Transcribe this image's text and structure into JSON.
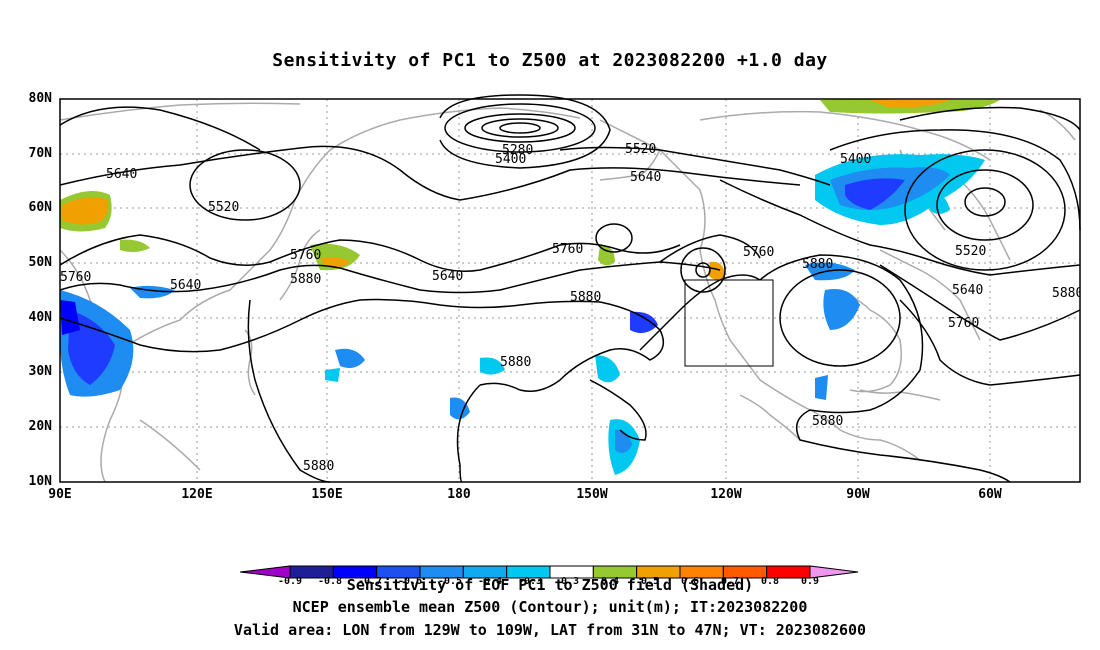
{
  "title": "Sensitivity of PC1 to Z500 at 2023082200 +1.0 day",
  "lat_labels": [
    "80N",
    "70N",
    "60N",
    "50N",
    "40N",
    "30N",
    "20N",
    "10N"
  ],
  "lon_labels": [
    "90E",
    "120E",
    "150E",
    "180",
    "150W",
    "120W",
    "90W",
    "60W"
  ],
  "contour_labels": [
    "5280",
    "5400",
    "5520",
    "5640",
    "5520",
    "5640",
    "5400",
    "5520",
    "5640",
    "5760",
    "5640",
    "5640",
    "5760",
    "5880",
    "5760",
    "5880",
    "5760",
    "5880",
    "5880",
    "5880",
    "5880",
    "5640",
    "5760",
    "5880",
    "5880"
  ],
  "colorbar": {
    "values": [
      "-0.9",
      "-0.8",
      "-0.7",
      "-0.6",
      "-0.5",
      "-0.4",
      "-0.3",
      "0.3",
      "0.4",
      "0.5",
      "0.6",
      "0.7",
      "0.8",
      "0.9"
    ],
    "colors": [
      "#a000c8",
      "#1e1e96",
      "#0000ff",
      "#1e50f0",
      "#1e8cf0",
      "#0faaf0",
      "#00c8f0",
      "#ffffff",
      "#96c832",
      "#f0a000",
      "#ff8200",
      "#ff5a00",
      "#ff0000",
      "#f096f0"
    ]
  },
  "shading_colors": {
    "blue_dark": "#1e3cff",
    "blue": "#1e8cf0",
    "cyan": "#00c8f0",
    "green": "#96c832",
    "orange": "#f0a000"
  },
  "captions": [
    "Sensitivity of EOF PC1 to Z500 field (Shaded)",
    "NCEP ensemble mean Z500 (Contour); unit(m); IT:2023082200",
    "Valid area: LON from 129W to 109W, LAT from 31N to 47N; VT: 2023082600"
  ]
}
